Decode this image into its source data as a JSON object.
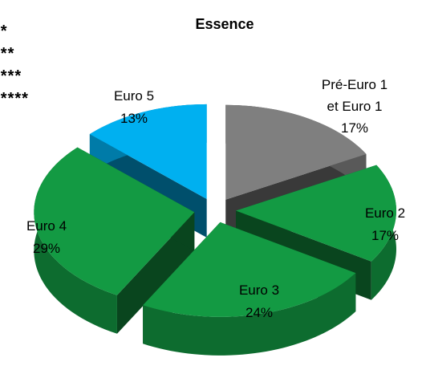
{
  "chart_data": {
    "type": "pie3d",
    "title": "Essence",
    "annotations": [
      "*",
      "**",
      "***",
      "****",
      "*****"
    ],
    "categories": [
      "Pré-Euro 1 et Euro 1",
      "Euro 2",
      "Euro 3",
      "Euro 4",
      "Euro 5"
    ],
    "values": [
      17,
      17,
      24,
      29,
      13
    ],
    "value_labels": [
      "17%",
      "17%",
      "24%",
      "29%",
      "13%"
    ],
    "colors": [
      "#7f7f7f",
      "#139a43",
      "#139a43",
      "#139a43",
      "#00b0f0"
    ],
    "exploded": true
  }
}
